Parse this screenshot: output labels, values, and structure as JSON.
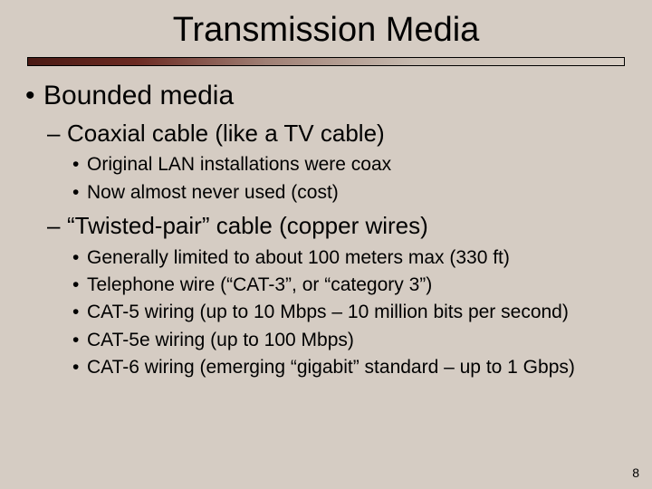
{
  "slide": {
    "title": "Transmission Media",
    "page_number": "8",
    "background_color": "#d5ccc3",
    "divider_gradient": [
      "#4a1a14",
      "#6b2a22",
      "#a08075",
      "#c7bbb0",
      "#d8cec4"
    ],
    "bullets": {
      "lvl1_0": "Bounded media",
      "lvl2_0": "Coaxial cable (like a TV cable)",
      "lvl3_0_0": "Original LAN installations were coax",
      "lvl3_0_1": "Now almost never used (cost)",
      "lvl2_1": "“Twisted-pair” cable (copper wires)",
      "lvl3_1_0": "Generally limited to about 100 meters max (330 ft)",
      "lvl3_1_1": "Telephone wire (“CAT-3”, or “category 3”)",
      "lvl3_1_2": "CAT-5 wiring (up to 10 Mbps – 10 million bits per second)",
      "lvl3_1_3": "CAT-5e wiring (up to 100 Mbps)",
      "lvl3_1_4": "CAT-6 wiring (emerging “gigabit” standard – up to 1 Gbps)"
    },
    "fonts": {
      "title_size_pt": 38,
      "lvl1_size_pt": 30,
      "lvl2_size_pt": 26,
      "lvl3_size_pt": 21,
      "pagenum_size_pt": 14,
      "family": "Arial"
    }
  }
}
